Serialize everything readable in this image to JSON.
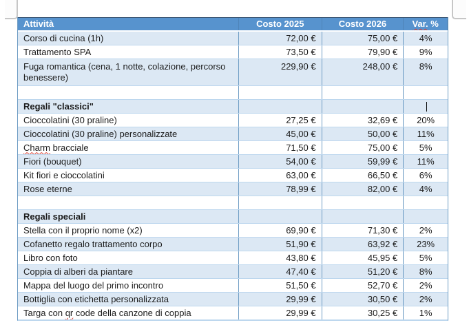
{
  "colors": {
    "header_bg": "#5793CE",
    "header_top": "#2B4A6B",
    "header_text": "#FFFFFF",
    "band_bg": "#DCE8F4",
    "border_v": "#6E9CC4",
    "border_h": "#BDD7EE",
    "text": "#1B1B1B",
    "squiggle": "#D83B2F"
  },
  "table": {
    "columns": [
      {
        "key": "name",
        "label": "Attività"
      },
      {
        "key": "cost2025",
        "label": "Costo 2025"
      },
      {
        "key": "cost2026",
        "label": "Costo 2026"
      },
      {
        "key": "var",
        "label": "Var. %",
        "squiggle": "Var."
      }
    ],
    "rows": [
      {
        "type": "item",
        "name": "Corso di cucina (1h)",
        "cost2025": "72,00 €",
        "cost2026": "75,00 €",
        "var": "4%"
      },
      {
        "type": "item",
        "name": "Trattamento SPA",
        "cost2025": "73,50 €",
        "cost2026": "79,90 €",
        "var": "9%"
      },
      {
        "type": "item",
        "tall": true,
        "name": "Fuga romantica (cena, 1 notte, colazione, percorso benessere)",
        "cost2025": "229,90 €",
        "cost2026": "248,00 €",
        "var": "8%"
      },
      {
        "type": "empty",
        "name": "",
        "cost2025": "",
        "cost2026": "",
        "var": ""
      },
      {
        "type": "section",
        "name": "Regali \"classici\"",
        "cost2025": "",
        "cost2026": "",
        "var": "",
        "caret": true
      },
      {
        "type": "item",
        "name": "Cioccolatini (30 praline)",
        "cost2025": "27,25 €",
        "cost2026": "32,69 €",
        "var": "20%"
      },
      {
        "type": "item",
        "name": "Cioccolatini (30 praline) personalizzate",
        "cost2025": "45,00 €",
        "cost2026": "50,00 €",
        "var": "11%"
      },
      {
        "type": "item",
        "name": "Charm bracciale",
        "squiggle": "Charm",
        "cost2025": "71,50 €",
        "cost2026": "75,00 €",
        "var": "5%"
      },
      {
        "type": "item",
        "name": "Fiori (bouquet)",
        "cost2025": "54,00 €",
        "cost2026": "59,99 €",
        "var": "11%"
      },
      {
        "type": "item",
        "name": "Kit fiori e cioccolatini",
        "cost2025": "63,00 €",
        "cost2026": "66,50 €",
        "var": "6%"
      },
      {
        "type": "item",
        "name": "Rose eterne",
        "cost2025": "78,99 €",
        "cost2026": "82,00 €",
        "var": "4%"
      },
      {
        "type": "empty",
        "name": "",
        "cost2025": "",
        "cost2026": "",
        "var": ""
      },
      {
        "type": "section",
        "name": "Regali speciali",
        "cost2025": "",
        "cost2026": "",
        "var": ""
      },
      {
        "type": "item",
        "name": "Stella con il proprio nome (x2)",
        "cost2025": "69,90 €",
        "cost2026": "71,30 €",
        "var": "2%"
      },
      {
        "type": "item",
        "name": "Cofanetto regalo trattamento corpo",
        "cost2025": "51,90 €",
        "cost2026": "63,92 €",
        "var": "23%"
      },
      {
        "type": "item",
        "name": "Libro con foto",
        "cost2025": "43,80 €",
        "cost2026": "45,95 €",
        "var": "5%"
      },
      {
        "type": "item",
        "name": "Coppia di alberi da piantare",
        "cost2025": "47,40 €",
        "cost2026": "51,20 €",
        "var": "8%"
      },
      {
        "type": "item",
        "name": "Mappa del luogo del primo incontro",
        "cost2025": "51,50 €",
        "cost2026": "52,70 €",
        "var": "2%"
      },
      {
        "type": "item",
        "name": "Bottiglia con etichetta personalizzata",
        "cost2025": "29,99 €",
        "cost2026": "30,50 €",
        "var": "2%"
      },
      {
        "type": "item",
        "name": "Targa con qr code della canzone di coppia",
        "squiggle": "qr",
        "cost2025": "29,99 €",
        "cost2026": "30,25 €",
        "var": "1%"
      }
    ]
  }
}
